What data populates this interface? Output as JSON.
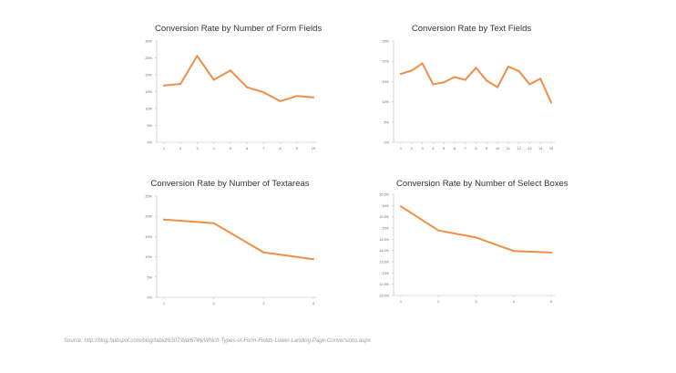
{
  "source": "Source: http://blog.hubspot.com/blog/tabid/6307/bid/6746/Which-Types-of-Form-Fields-Lower-Landing-Page-Conversions.aspx",
  "colors": {
    "line": "#f28d44",
    "axis": "#bbbbbb",
    "tick_text": "#666666"
  },
  "chart_data": [
    {
      "type": "line",
      "title": "Conversion Rate by Number of Form Fields",
      "x": [
        1,
        2,
        3,
        4,
        5,
        6,
        7,
        8,
        9,
        10
      ],
      "x_tick_labels": [
        "1",
        "2",
        "3",
        "4",
        "5",
        "6",
        "7",
        "8",
        "9",
        "10"
      ],
      "series": [
        {
          "values": [
            16.8,
            17.3,
            25.6,
            18.5,
            21.3,
            16.3,
            14.8,
            12.2,
            13.7,
            13.3
          ]
        }
      ],
      "ylim": [
        0,
        30
      ],
      "y_ticks": [
        0,
        5,
        10,
        15,
        20,
        25,
        30
      ],
      "y_tick_labels": [
        "0%",
        "5%",
        "10%",
        "15%",
        "20%",
        "25%",
        "30%"
      ],
      "xlabel": "",
      "ylabel": "",
      "grid": false
    },
    {
      "type": "line",
      "title": "Conversion Rate by Text Fields",
      "x": [
        1,
        2,
        3,
        4,
        5,
        6,
        7,
        8,
        9,
        10,
        11,
        12,
        13,
        14,
        15
      ],
      "x_tick_labels": [
        "1",
        "2",
        "3",
        "4",
        "5",
        "6",
        "7",
        "8",
        "9",
        "10",
        "11",
        "12",
        "13",
        "14",
        "15"
      ],
      "series": [
        {
          "values": [
            16.9,
            17.7,
            19.5,
            14.3,
            14.8,
            16.1,
            15.4,
            18.4,
            15.2,
            13.6,
            18.7,
            17.6,
            14.3,
            15.7,
            9.8
          ]
        }
      ],
      "ylim": [
        0,
        25
      ],
      "y_ticks": [
        0,
        5,
        10,
        15,
        20,
        25
      ],
      "y_tick_labels": [
        "0%",
        "5%",
        "10%",
        "15%",
        "20%",
        "25%"
      ],
      "xlabel": "",
      "ylabel": "",
      "grid": false
    },
    {
      "type": "line",
      "title": "Conversion Rate by Number of Textareas",
      "x": [
        1,
        2,
        3,
        4
      ],
      "x_tick_labels": [
        "1",
        "2",
        "3",
        "4"
      ],
      "series": [
        {
          "values": [
            19.2,
            18.3,
            11.1,
            9.4
          ]
        }
      ],
      "ylim": [
        0,
        25
      ],
      "y_ticks": [
        0,
        5,
        10,
        15,
        20,
        25
      ],
      "y_tick_labels": [
        "0%",
        "5%",
        "10%",
        "15%",
        "20%",
        "25%"
      ],
      "xlabel": "",
      "ylabel": "",
      "grid": false
    },
    {
      "type": "line",
      "title": "Conversion Rate by Number of Select Boxes",
      "x": [
        1,
        2,
        3,
        4,
        5
      ],
      "x_tick_labels": [
        "1",
        "2",
        "3",
        "4",
        "5"
      ],
      "series": [
        {
          "values": [
            15.96,
            14.89,
            14.58,
            13.98,
            13.91
          ]
        }
      ],
      "ylim": [
        12,
        16.5
      ],
      "y_ticks": [
        12,
        12.5,
        13,
        13.5,
        14,
        14.5,
        15,
        15.5,
        16,
        16.5
      ],
      "y_tick_labels": [
        "12.0%",
        "12.5%",
        "13%",
        "13.5%",
        "14.0%",
        "14.5%",
        "15%",
        "15.5%",
        "16%",
        "16.5%"
      ],
      "xlabel": "",
      "ylabel": "",
      "grid": false
    }
  ]
}
